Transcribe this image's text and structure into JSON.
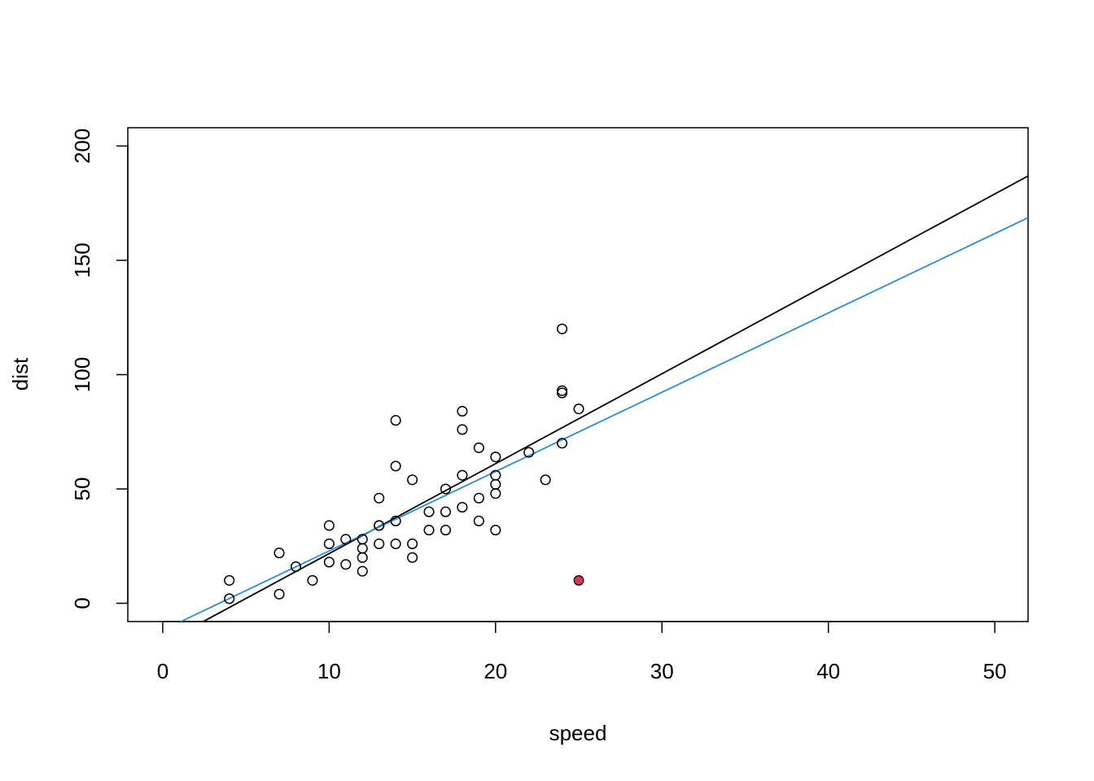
{
  "chart_data": {
    "type": "scatter",
    "title": "",
    "xlabel": "speed",
    "ylabel": "dist",
    "xlim": [
      -2.1,
      52
    ],
    "ylim": [
      -8,
      208
    ],
    "x_ticks": [
      0,
      10,
      20,
      30,
      40,
      50
    ],
    "y_ticks": [
      0,
      50,
      100,
      150,
      200
    ],
    "x_tick_labels": [
      "0",
      "10",
      "20",
      "30",
      "40",
      "50"
    ],
    "y_tick_labels": [
      "0",
      "50",
      "100",
      "150",
      "200"
    ],
    "grid": false,
    "legend": "none",
    "points": [
      [
        4,
        2
      ],
      [
        4,
        10
      ],
      [
        7,
        4
      ],
      [
        7,
        22
      ],
      [
        8,
        16
      ],
      [
        9,
        10
      ],
      [
        10,
        18
      ],
      [
        10,
        26
      ],
      [
        10,
        34
      ],
      [
        11,
        17
      ],
      [
        11,
        28
      ],
      [
        12,
        14
      ],
      [
        12,
        20
      ],
      [
        12,
        24
      ],
      [
        12,
        28
      ],
      [
        13,
        26
      ],
      [
        13,
        34
      ],
      [
        13,
        34
      ],
      [
        13,
        46
      ],
      [
        14,
        26
      ],
      [
        14,
        36
      ],
      [
        14,
        60
      ],
      [
        14,
        80
      ],
      [
        15,
        20
      ],
      [
        15,
        26
      ],
      [
        15,
        54
      ],
      [
        16,
        32
      ],
      [
        16,
        40
      ],
      [
        17,
        32
      ],
      [
        17,
        40
      ],
      [
        17,
        50
      ],
      [
        18,
        42
      ],
      [
        18,
        56
      ],
      [
        18,
        76
      ],
      [
        18,
        84
      ],
      [
        19,
        36
      ],
      [
        19,
        46
      ],
      [
        19,
        68
      ],
      [
        20,
        32
      ],
      [
        20,
        48
      ],
      [
        20,
        52
      ],
      [
        20,
        56
      ],
      [
        20,
        64
      ],
      [
        22,
        66
      ],
      [
        23,
        54
      ],
      [
        24,
        70
      ],
      [
        24,
        92
      ],
      [
        24,
        93
      ],
      [
        24,
        120
      ],
      [
        25,
        85
      ]
    ],
    "highlight_point": {
      "x": 25,
      "y": 10,
      "color": "#cd3b55"
    },
    "lines": [
      {
        "intercept": -17.58,
        "slope": 3.932,
        "color": "#000000"
      },
      {
        "intercept": -11.8,
        "slope": 3.47,
        "color": "#2e8bd6"
      }
    ]
  }
}
